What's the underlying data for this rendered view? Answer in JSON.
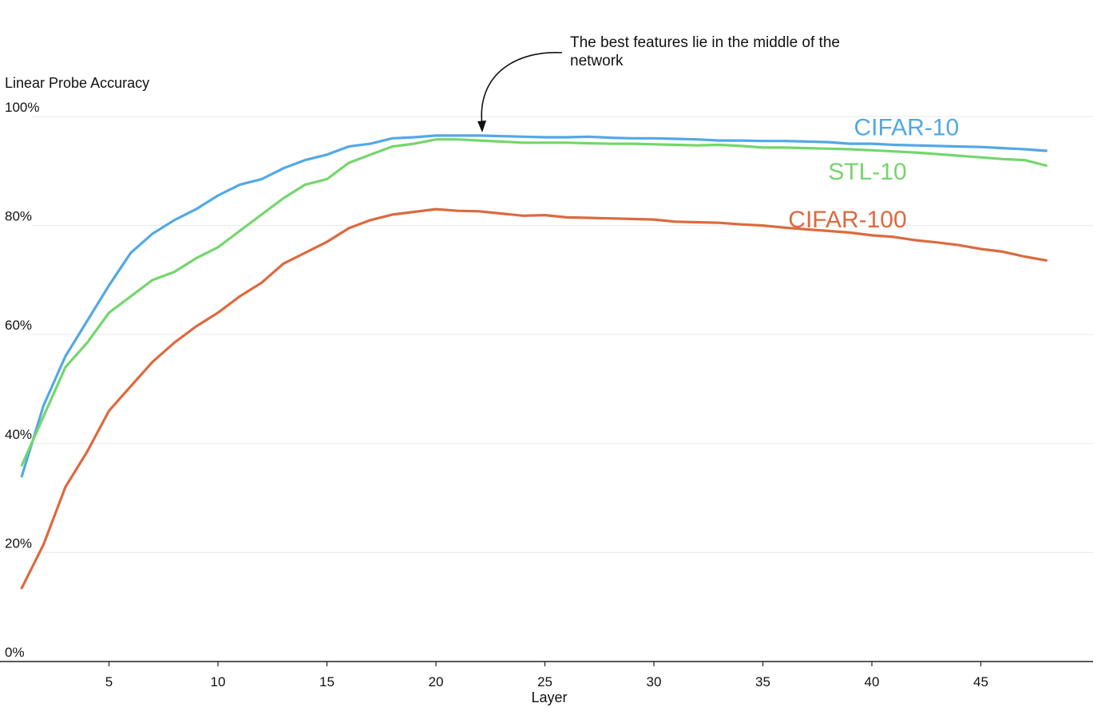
{
  "chart_data": {
    "type": "line",
    "xlabel": "Layer",
    "ylabel": "Linear Probe Accuracy",
    "xlim": [
      0,
      48
    ],
    "ylim": [
      0,
      100
    ],
    "x_ticks": [
      5,
      10,
      15,
      20,
      25,
      30,
      35,
      40,
      45
    ],
    "y_ticks": [
      0,
      20,
      40,
      60,
      80,
      100
    ],
    "y_tick_labels": [
      "0%",
      "20%",
      "40%",
      "60%",
      "80%",
      "100%"
    ],
    "grid": "horizontal",
    "x": [
      1,
      2,
      3,
      4,
      5,
      6,
      7,
      8,
      9,
      10,
      11,
      12,
      13,
      14,
      15,
      16,
      17,
      18,
      19,
      20,
      21,
      22,
      23,
      24,
      25,
      26,
      27,
      28,
      29,
      30,
      31,
      32,
      33,
      34,
      35,
      36,
      37,
      38,
      39,
      40,
      41,
      42,
      43,
      44,
      45,
      46,
      47,
      48
    ],
    "series": [
      {
        "name": "CIFAR-10",
        "color": "#52a8e6",
        "values": [
          34,
          47,
          56,
          62.5,
          69,
          75,
          78.5,
          81,
          83,
          85.5,
          87.5,
          88.5,
          90.5,
          92,
          93,
          94.5,
          95,
          96,
          96.2,
          96.5,
          96.5,
          96.5,
          96.4,
          96.3,
          96.2,
          96.2,
          96.3,
          96.1,
          96,
          96,
          95.9,
          95.8,
          95.6,
          95.6,
          95.5,
          95.5,
          95.4,
          95.3,
          95,
          95,
          94.8,
          94.7,
          94.6,
          94.5,
          94.4,
          94.2,
          94,
          93.7
        ]
      },
      {
        "name": "STL-10",
        "color": "#74d66c",
        "values": [
          36,
          45,
          54,
          58.5,
          64,
          67,
          70,
          71.5,
          74,
          76,
          79,
          82,
          85,
          87.5,
          88.5,
          91.5,
          93,
          94.5,
          95,
          95.8,
          95.8,
          95.6,
          95.4,
          95.2,
          95.2,
          95.2,
          95.1,
          95,
          95,
          94.9,
          94.8,
          94.7,
          94.8,
          94.6,
          94.3,
          94.3,
          94.2,
          94.1,
          94,
          93.8,
          93.6,
          93.4,
          93.1,
          92.8,
          92.5,
          92.2,
          92,
          91
        ]
      },
      {
        "name": "CIFAR-100",
        "color": "#dc6a3e",
        "values": [
          13.5,
          21.5,
          32,
          38.5,
          46,
          50.5,
          55,
          58.5,
          61.5,
          64,
          67,
          69.5,
          73,
          75,
          77,
          79.5,
          81,
          82,
          82.5,
          83,
          82.7,
          82.6,
          82.2,
          81.8,
          81.9,
          81.5,
          81.4,
          81.3,
          81.2,
          81.1,
          80.7,
          80.6,
          80.5,
          80.2,
          80,
          79.6,
          79.3,
          79,
          78.7,
          78.2,
          77.9,
          77.3,
          76.9,
          76.4,
          75.7,
          75.2,
          74.3,
          73.6
        ]
      }
    ],
    "annotations": [
      {
        "text_lines": [
          "The best features lie in the middle of the",
          "network"
        ],
        "points_to": {
          "x": 20,
          "y": 96.5
        }
      }
    ]
  }
}
